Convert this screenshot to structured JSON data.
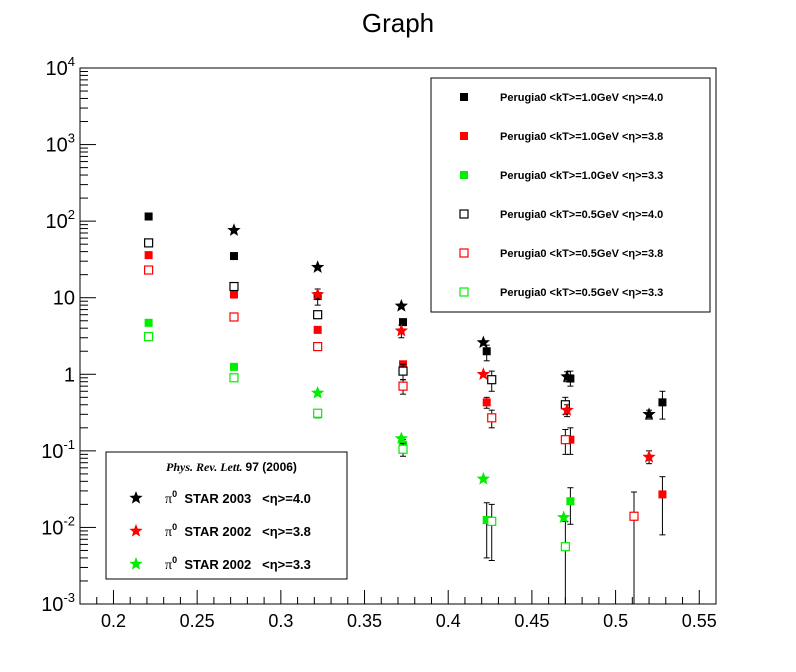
{
  "chart_data": {
    "type": "scatter",
    "title": "Graph",
    "xlim": [
      0.18,
      0.56
    ],
    "ylim": [
      0.001,
      10000
    ],
    "y_scale": "log",
    "x_ticks": [
      "0.2",
      "0.25",
      "0.3",
      "0.35",
      "0.4",
      "0.45",
      "0.5",
      "0.55"
    ],
    "y_ticks": [
      {
        "base": "10",
        "exp": "-3"
      },
      {
        "base": "10",
        "exp": "-2"
      },
      {
        "base": "10",
        "exp": "-1"
      },
      {
        "base": "1",
        "exp": ""
      },
      {
        "base": "10",
        "exp": ""
      },
      {
        "base": "10",
        "exp": "2"
      },
      {
        "base": "10",
        "exp": "3"
      },
      {
        "base": "10",
        "exp": "4"
      }
    ],
    "grid": false,
    "legend_top": {
      "position": "top-right",
      "entries": [
        {
          "text": "Perugia0 <kT>=1.0GeV <η>=4.0",
          "color": "#000000",
          "marker": "filled-square"
        },
        {
          "text": "Perugia0 <kT>=1.0GeV <η>=3.8",
          "color": "#ff0000",
          "marker": "filled-square"
        },
        {
          "text": "Perugia0 <kT>=1.0GeV <η>=3.3",
          "color": "#00ee00",
          "marker": "filled-square"
        },
        {
          "text": "Perugia0 <kT>=0.5GeV <η>=4.0",
          "color": "#000000",
          "marker": "open-square"
        },
        {
          "text": "Perugia0 <kT>=0.5GeV <η>=3.8",
          "color": "#ff0000",
          "marker": "open-square"
        },
        {
          "text": "Perugia0 <kT>=0.5GeV <η>=3.3",
          "color": "#00ee00",
          "marker": "open-square"
        }
      ]
    },
    "legend_bottom": {
      "position": "bottom-left",
      "header_journal": "Phys. Rev. Lett.",
      "header_volume": "97",
      "header_year": "(2006)",
      "entries": [
        {
          "symbol": "π",
          "sup": "0",
          "text": "STAR 2003   <η>=4.0",
          "color": "#000000",
          "marker": "star"
        },
        {
          "symbol": "π",
          "sup": "0",
          "text": "STAR 2002   <η>=3.8",
          "color": "#ff0000",
          "marker": "star"
        },
        {
          "symbol": "π",
          "sup": "0",
          "text": "STAR 2002   <η>=3.3",
          "color": "#00ee00",
          "marker": "star"
        }
      ]
    },
    "series": [
      {
        "color": "#000000",
        "marker": "filled-square",
        "points": [
          {
            "x": 0.221,
            "y": 115
          },
          {
            "x": 0.272,
            "y": 35
          },
          {
            "x": 0.322,
            "y": 10.5,
            "err": [
              8,
              13
            ]
          },
          {
            "x": 0.373,
            "y": 4.8
          },
          {
            "x": 0.423,
            "y": 2.0,
            "err": [
              1.5,
              2.4
            ]
          },
          {
            "x": 0.473,
            "y": 0.88,
            "err": [
              0.7,
              1.1
            ]
          },
          {
            "x": 0.528,
            "y": 0.43,
            "err": [
              0.26,
              0.6
            ]
          }
        ]
      },
      {
        "color": "#ff0000",
        "marker": "filled-square",
        "points": [
          {
            "x": 0.221,
            "y": 36
          },
          {
            "x": 0.272,
            "y": 11
          },
          {
            "x": 0.322,
            "y": 3.8
          },
          {
            "x": 0.373,
            "y": 1.35
          },
          {
            "x": 0.423,
            "y": 0.43,
            "err": [
              0.36,
              0.5
            ]
          },
          {
            "x": 0.473,
            "y": 0.14,
            "err": [
              0.09,
              0.2
            ]
          },
          {
            "x": 0.528,
            "y": 0.027,
            "err": [
              0.008,
              0.046
            ]
          }
        ]
      },
      {
        "color": "#00ee00",
        "marker": "filled-square",
        "points": [
          {
            "x": 0.221,
            "y": 4.7
          },
          {
            "x": 0.272,
            "y": 1.25
          },
          {
            "x": 0.322,
            "y": 0.3,
            "err": [
              0.27,
              0.33
            ]
          },
          {
            "x": 0.373,
            "y": 0.12,
            "err": [
              0.1,
              0.14
            ]
          },
          {
            "x": 0.423,
            "y": 0.0125,
            "err": [
              0.004,
              0.021
            ]
          },
          {
            "x": 0.473,
            "y": 0.022,
            "err": [
              0.011,
              0.033
            ]
          }
        ]
      },
      {
        "color": "#000000",
        "marker": "open-square",
        "points": [
          {
            "x": 0.221,
            "y": 52
          },
          {
            "x": 0.272,
            "y": 14
          },
          {
            "x": 0.322,
            "y": 6.0
          },
          {
            "x": 0.373,
            "y": 1.1,
            "err": [
              0.85,
              1.35
            ]
          },
          {
            "x": 0.426,
            "y": 0.85,
            "err": [
              0.6,
              1.1
            ]
          },
          {
            "x": 0.47,
            "y": 0.4,
            "err": [
              0.3,
              0.5
            ]
          }
        ]
      },
      {
        "color": "#ff0000",
        "marker": "open-square",
        "points": [
          {
            "x": 0.221,
            "y": 23
          },
          {
            "x": 0.272,
            "y": 5.6
          },
          {
            "x": 0.322,
            "y": 2.3
          },
          {
            "x": 0.373,
            "y": 0.7,
            "err": [
              0.55,
              0.85
            ]
          },
          {
            "x": 0.426,
            "y": 0.27,
            "err": [
              0.2,
              0.34
            ]
          },
          {
            "x": 0.47,
            "y": 0.14,
            "err": [
              0.09,
              0.19
            ]
          },
          {
            "x": 0.511,
            "y": 0.014,
            "err": [
              0.001,
              0.029
            ]
          }
        ]
      },
      {
        "color": "#00ee00",
        "marker": "open-square",
        "points": [
          {
            "x": 0.221,
            "y": 3.1
          },
          {
            "x": 0.272,
            "y": 0.9
          },
          {
            "x": 0.322,
            "y": 0.31
          },
          {
            "x": 0.373,
            "y": 0.105,
            "err": [
              0.085,
              0.125
            ]
          },
          {
            "x": 0.426,
            "y": 0.012,
            "err": [
              0.0037,
              0.02
            ]
          },
          {
            "x": 0.47,
            "y": 0.0056,
            "err": [
              0.001,
              0.012
            ]
          }
        ]
      },
      {
        "color": "#000000",
        "marker": "star",
        "points": [
          {
            "x": 0.272,
            "y": 76
          },
          {
            "x": 0.322,
            "y": 25
          },
          {
            "x": 0.372,
            "y": 7.8
          },
          {
            "x": 0.421,
            "y": 2.6
          },
          {
            "x": 0.471,
            "y": 0.93,
            "err": [
              0.8,
              1.08
            ]
          },
          {
            "x": 0.52,
            "y": 0.3,
            "err": [
              0.26,
              0.34
            ]
          }
        ]
      },
      {
        "color": "#ff0000",
        "marker": "star",
        "points": [
          {
            "x": 0.322,
            "y": 11
          },
          {
            "x": 0.372,
            "y": 3.7,
            "err": [
              3.0,
              4.4
            ]
          },
          {
            "x": 0.421,
            "y": 1.0
          },
          {
            "x": 0.471,
            "y": 0.34,
            "err": [
              0.28,
              0.4
            ]
          },
          {
            "x": 0.52,
            "y": 0.083,
            "err": [
              0.068,
              0.1
            ]
          }
        ]
      },
      {
        "color": "#00ee00",
        "marker": "star",
        "points": [
          {
            "x": 0.322,
            "y": 0.57
          },
          {
            "x": 0.372,
            "y": 0.145
          },
          {
            "x": 0.421,
            "y": 0.043
          },
          {
            "x": 0.469,
            "y": 0.0135
          }
        ]
      }
    ]
  }
}
